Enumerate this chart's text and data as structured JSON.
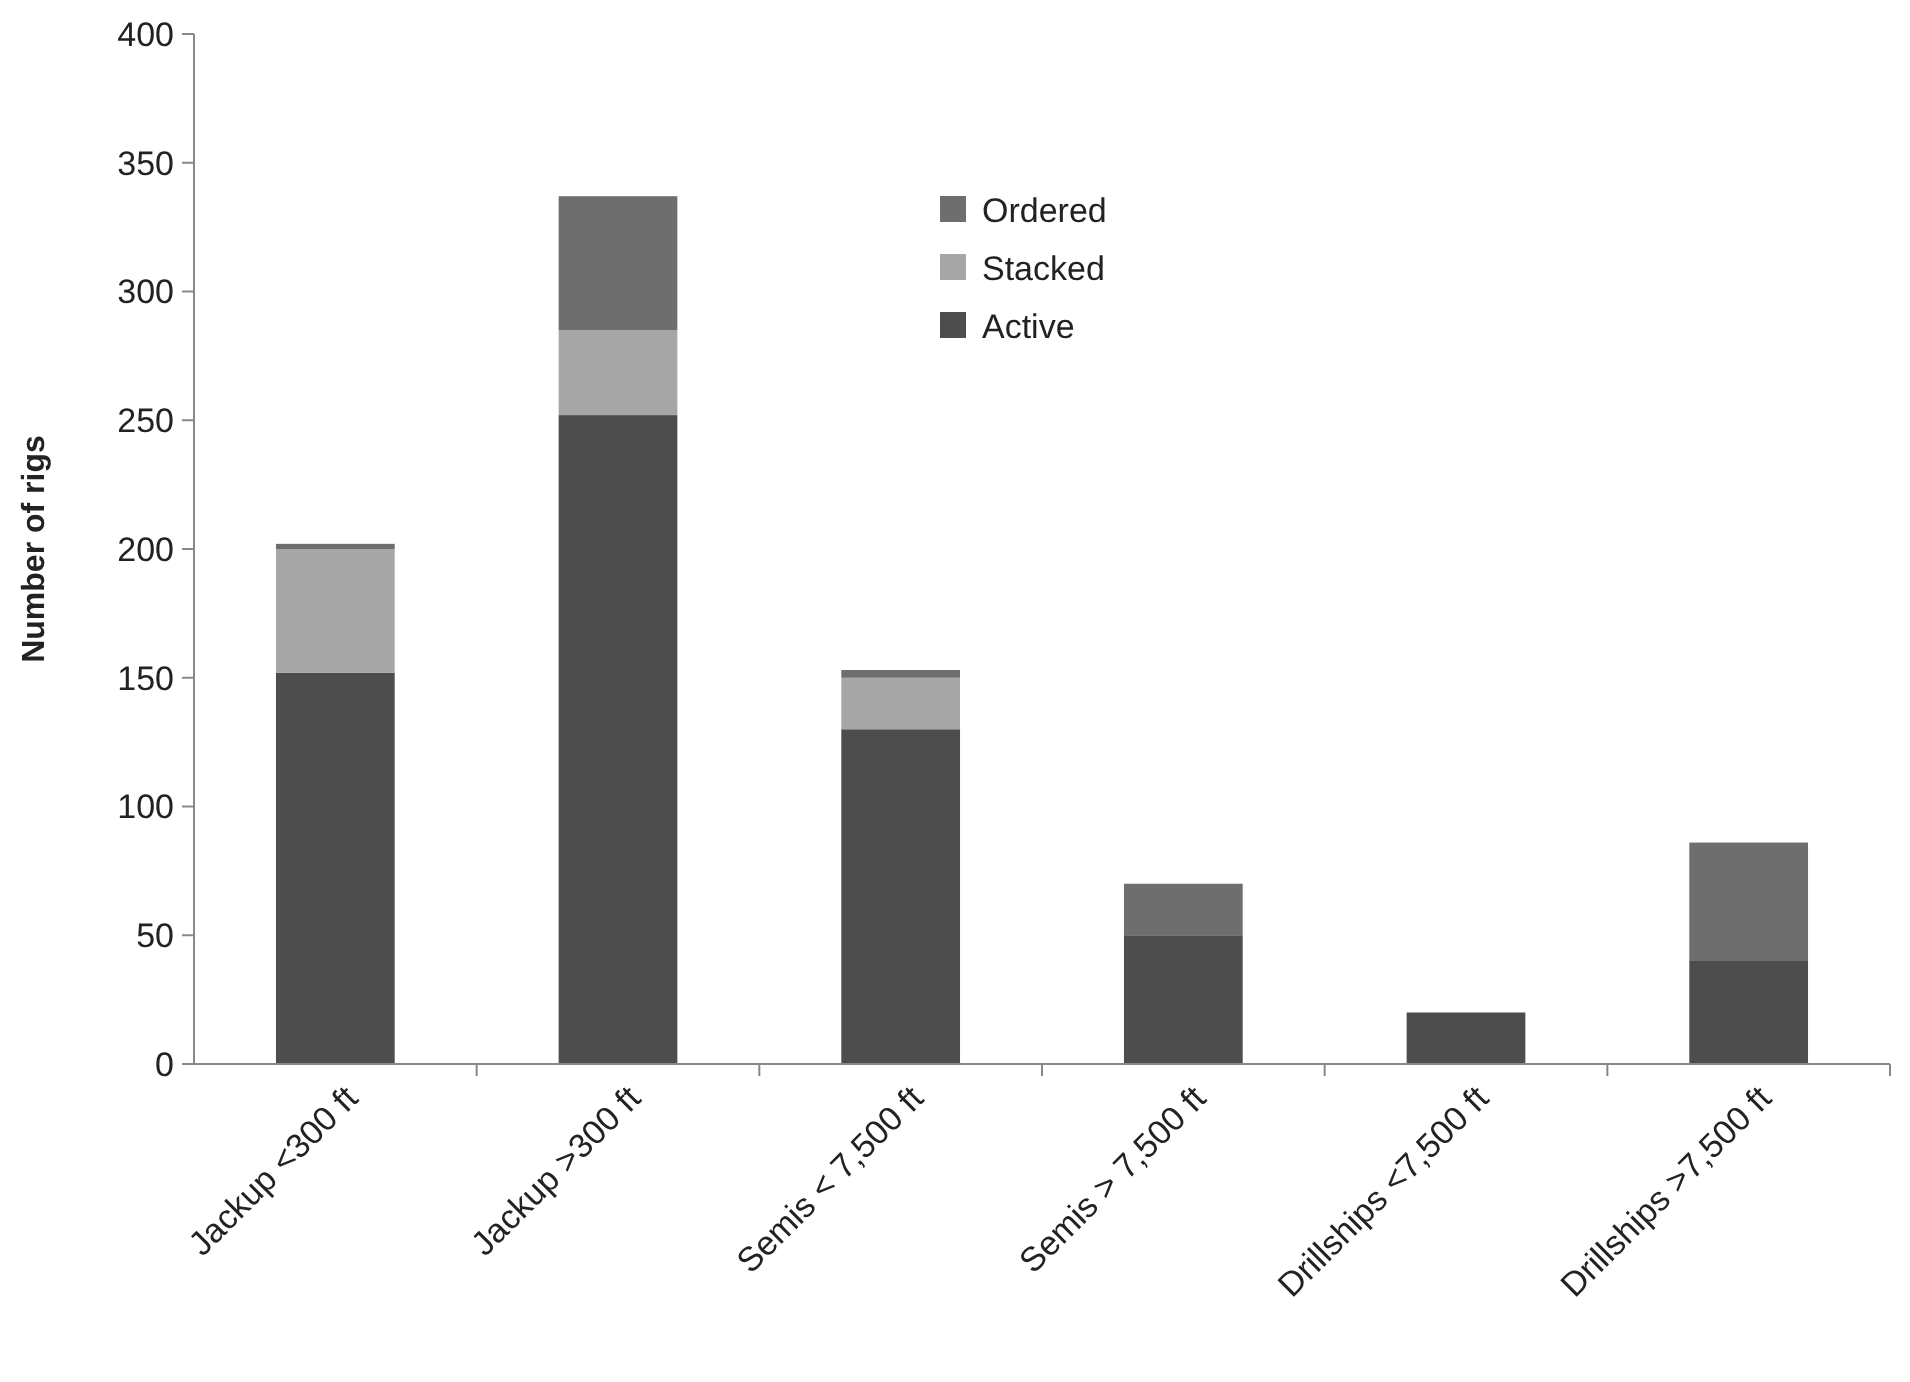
{
  "chart_data": {
    "type": "bar",
    "stacked": true,
    "ylabel": "Number of rigs",
    "categories": [
      "Jackup <300 ft",
      "Jackup >300 ft",
      "Semis < 7,500 ft",
      "Semis > 7,500 ft",
      "Drillships <7,500 ft",
      "Drillships >7,500 ft"
    ],
    "series": [
      {
        "name": "Active",
        "color": "#4d4d4d",
        "values": [
          152,
          252,
          130,
          50,
          20,
          40
        ]
      },
      {
        "name": "Stacked",
        "color": "#a6a6a6",
        "values": [
          48,
          33,
          20,
          0,
          0,
          0
        ]
      },
      {
        "name": "Ordered",
        "color": "#6e6e6e",
        "values": [
          2,
          52,
          3,
          20,
          0,
          46
        ]
      }
    ],
    "ylim": [
      0,
      400
    ],
    "yticks": [
      0,
      50,
      100,
      150,
      200,
      250,
      300,
      350,
      400
    ],
    "grid": false,
    "legend": "top"
  }
}
